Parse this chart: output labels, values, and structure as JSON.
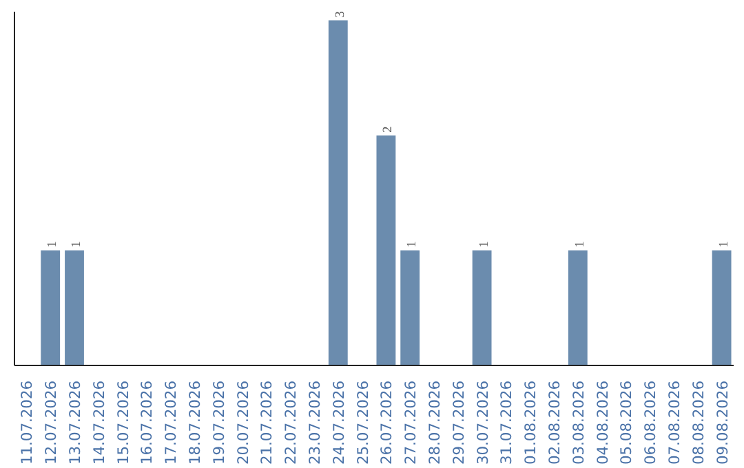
{
  "chart_data": {
    "type": "bar",
    "categories": [
      "11.07.2026",
      "12.07.2026",
      "13.07.2026",
      "14.07.2026",
      "15.07.2026",
      "16.07.2026",
      "17.07.2026",
      "18.07.2026",
      "19.07.2026",
      "20.07.2026",
      "21.07.2026",
      "22.07.2026",
      "23.07.2026",
      "24.07.2026",
      "25.07.2026",
      "26.07.2026",
      "27.07.2026",
      "28.07.2026",
      "29.07.2026",
      "30.07.2026",
      "31.07.2026",
      "01.08.2026",
      "02.08.2026",
      "03.08.2026",
      "04.08.2026",
      "05.08.2026",
      "06.08.2026",
      "07.08.2026",
      "08.08.2026",
      "09.08.2026"
    ],
    "series": [
      {
        "color": "#6b8cae",
        "values": [
          0,
          1,
          1,
          0,
          0,
          0,
          0,
          0,
          0,
          0,
          0,
          0,
          0,
          3,
          0,
          2,
          1,
          0,
          0,
          1,
          0,
          0,
          0,
          1,
          0,
          0,
          0,
          0,
          0,
          1
        ],
        "value_labels": [
          null,
          "1",
          "1",
          null,
          null,
          null,
          null,
          null,
          null,
          null,
          null,
          null,
          null,
          "3",
          null,
          "2",
          "1",
          null,
          null,
          "1",
          null,
          null,
          null,
          "1",
          null,
          null,
          null,
          null,
          null,
          "1"
        ]
      }
    ],
    "tick_labels": "x",
    "grid": false
  }
}
